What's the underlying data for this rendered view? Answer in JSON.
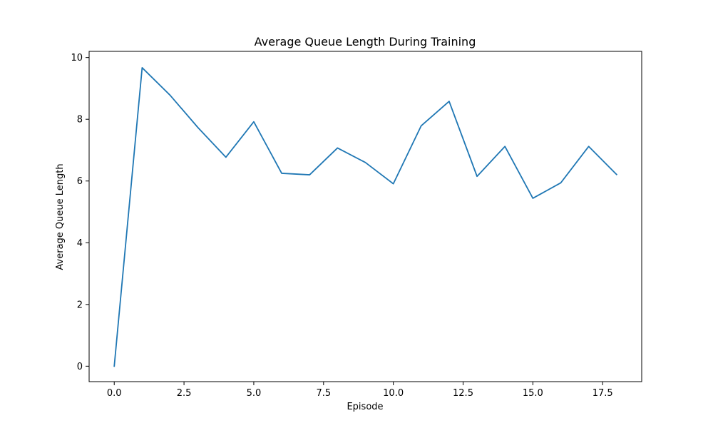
{
  "chart_data": {
    "type": "line",
    "title": "Average Queue Length During Training",
    "xlabel": "Episode",
    "ylabel": "Average Queue Length",
    "xlim": [
      -0.9,
      18.9
    ],
    "ylim": [
      -0.5,
      10.2
    ],
    "x_ticks": [
      0.0,
      2.5,
      5.0,
      7.5,
      10.0,
      12.5,
      15.0,
      17.5
    ],
    "x_tick_labels": [
      "0.0",
      "2.5",
      "5.0",
      "7.5",
      "10.0",
      "12.5",
      "15.0",
      "17.5"
    ],
    "y_ticks": [
      0,
      2,
      4,
      6,
      8,
      10
    ],
    "y_tick_labels": [
      "0",
      "2",
      "4",
      "6",
      "8",
      "10"
    ],
    "grid": false,
    "legend": "none",
    "series": [
      {
        "color": "#1f77b4",
        "x": [
          0,
          1,
          2,
          3,
          4,
          5,
          6,
          7,
          8,
          9,
          10,
          11,
          12,
          13,
          14,
          15,
          16,
          17,
          18
        ],
        "values": [
          0.0,
          9.67,
          8.78,
          7.73,
          6.77,
          7.92,
          6.25,
          6.2,
          7.07,
          6.6,
          5.91,
          7.79,
          8.58,
          6.15,
          7.12,
          5.44,
          5.94,
          7.12,
          6.21
        ]
      }
    ]
  }
}
